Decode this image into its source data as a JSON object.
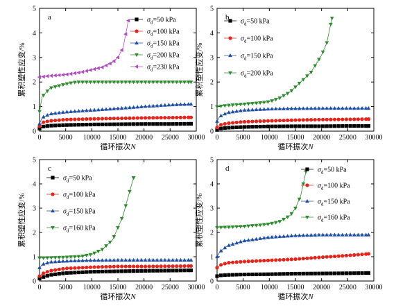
{
  "figure": {
    "x_axis_label": "循环振次",
    "x_axis_var": "N",
    "y_axis_label": "累积塑性应变/%"
  },
  "colors": {
    "black": "#000000",
    "red": "#e8231a",
    "blue": "#1f4ea6",
    "green": "#2e8b2e",
    "purple": "#b04cc0"
  },
  "chart_data": [
    {
      "type": "line",
      "panel": "a",
      "xlabel": "循环振次N",
      "ylabel": "累积塑性应变/%",
      "xlim": [
        0,
        30000
      ],
      "ylim": [
        0,
        5
      ],
      "xticks": [
        0,
        5000,
        10000,
        15000,
        20000,
        25000,
        30000
      ],
      "yticks": [
        0,
        1,
        2,
        3,
        4,
        5
      ],
      "legend_position": "top-right",
      "series": [
        {
          "name": "σd=50 kPa",
          "color": "black",
          "marker": "square",
          "x": [
            0,
            500,
            2000,
            5000,
            10000,
            15000,
            20000,
            25000,
            29000
          ],
          "y": [
            0.1,
            0.18,
            0.22,
            0.25,
            0.27,
            0.28,
            0.29,
            0.29,
            0.3
          ]
        },
        {
          "name": "σd=100 kPa",
          "color": "red",
          "marker": "circle",
          "x": [
            0,
            500,
            2000,
            5000,
            10000,
            15000,
            20000,
            25000,
            29000
          ],
          "y": [
            0.2,
            0.35,
            0.42,
            0.47,
            0.5,
            0.52,
            0.54,
            0.55,
            0.56
          ]
        },
        {
          "name": "σd=150 kPa",
          "color": "blue",
          "marker": "triangle-up",
          "x": [
            0,
            500,
            2000,
            5000,
            10000,
            15000,
            20000,
            25000,
            29000
          ],
          "y": [
            0.3,
            0.55,
            0.7,
            0.78,
            0.85,
            0.92,
            1.0,
            1.07,
            1.1
          ]
        },
        {
          "name": "σd=200 kPa",
          "color": "green",
          "marker": "triangle-down",
          "x": [
            0,
            500,
            2000,
            5000,
            7000,
            10000,
            15000,
            20000,
            25000,
            29000
          ],
          "y": [
            0.8,
            1.4,
            1.75,
            1.92,
            2.0,
            2.0,
            2.0,
            2.0,
            2.0,
            2.0
          ]
        },
        {
          "name": "σd=230 kPa",
          "color": "purple",
          "marker": "triangle-left",
          "x": [
            0,
            2000,
            5000,
            8000,
            10000,
            12000,
            14000,
            15000,
            16000,
            17000
          ],
          "y": [
            2.2,
            2.25,
            2.3,
            2.4,
            2.5,
            2.6,
            2.8,
            3.0,
            3.4,
            4.5
          ]
        }
      ]
    },
    {
      "type": "line",
      "panel": "b",
      "xlabel": "循环振次N",
      "ylabel": "累积塑性应变/%",
      "xlim": [
        0,
        30000
      ],
      "ylim": [
        0,
        5
      ],
      "xticks": [
        0,
        5000,
        10000,
        15000,
        20000,
        25000,
        30000
      ],
      "yticks": [
        0,
        1,
        2,
        3,
        4,
        5
      ],
      "legend_position": "top-left",
      "series": [
        {
          "name": "σd=50 kPa",
          "color": "black",
          "marker": "square",
          "x": [
            0,
            500,
            2000,
            5000,
            10000,
            15000,
            20000,
            25000,
            29000
          ],
          "y": [
            0.05,
            0.1,
            0.14,
            0.17,
            0.19,
            0.2,
            0.2,
            0.21,
            0.21
          ]
        },
        {
          "name": "σd=100 kPa",
          "color": "red",
          "marker": "circle",
          "x": [
            0,
            500,
            2000,
            5000,
            10000,
            15000,
            20000,
            25000,
            29000
          ],
          "y": [
            0.15,
            0.25,
            0.32,
            0.38,
            0.42,
            0.45,
            0.47,
            0.48,
            0.49
          ]
        },
        {
          "name": "σd=150 kPa",
          "color": "blue",
          "marker": "triangle-up",
          "x": [
            0,
            500,
            2000,
            5000,
            10000,
            15000,
            20000,
            25000,
            29000
          ],
          "y": [
            0.4,
            0.6,
            0.75,
            0.85,
            0.9,
            0.92,
            0.93,
            0.93,
            0.93
          ]
        },
        {
          "name": "σd=200 kPa",
          "color": "green",
          "marker": "triangle-down",
          "x": [
            0,
            2000,
            5000,
            8000,
            10000,
            12000,
            14000,
            16000,
            18000,
            20000,
            21000,
            22000
          ],
          "y": [
            1.0,
            1.05,
            1.1,
            1.15,
            1.2,
            1.35,
            1.6,
            2.0,
            2.4,
            3.1,
            3.6,
            4.6
          ]
        }
      ]
    },
    {
      "type": "line",
      "panel": "c",
      "xlabel": "循环振次N",
      "ylabel": "累积塑性应变/%",
      "xlim": [
        0,
        30000
      ],
      "ylim": [
        0,
        5
      ],
      "xticks": [
        0,
        5000,
        10000,
        15000,
        20000,
        25000,
        30000
      ],
      "yticks": [
        0,
        1,
        2,
        3,
        4,
        5
      ],
      "legend_position": "top-left",
      "series": [
        {
          "name": "σd=50 kPa",
          "color": "black",
          "marker": "square",
          "x": [
            0,
            500,
            2000,
            5000,
            10000,
            15000,
            20000,
            25000,
            29000
          ],
          "y": [
            0.1,
            0.15,
            0.25,
            0.33,
            0.38,
            0.4,
            0.42,
            0.43,
            0.44
          ]
        },
        {
          "name": "σd=100 kPa",
          "color": "red",
          "marker": "circle",
          "x": [
            0,
            500,
            2000,
            5000,
            10000,
            15000,
            20000,
            25000,
            29000
          ],
          "y": [
            0.2,
            0.3,
            0.42,
            0.52,
            0.57,
            0.6,
            0.6,
            0.61,
            0.62
          ]
        },
        {
          "name": "σd=150 kPa",
          "color": "blue",
          "marker": "triangle-up",
          "x": [
            0,
            500,
            2000,
            5000,
            10000,
            15000,
            20000,
            25000,
            29000
          ],
          "y": [
            0.55,
            0.68,
            0.78,
            0.82,
            0.85,
            0.86,
            0.86,
            0.86,
            0.86
          ]
        },
        {
          "name": "σd=160 kPa",
          "color": "green",
          "marker": "triangle-down",
          "x": [
            0,
            2000,
            5000,
            8000,
            10000,
            12000,
            14000,
            15000,
            16000,
            17000,
            18000
          ],
          "y": [
            0.95,
            0.96,
            0.98,
            1.02,
            1.1,
            1.3,
            1.7,
            2.2,
            2.7,
            3.5,
            4.25
          ]
        }
      ]
    },
    {
      "type": "line",
      "panel": "d",
      "xlabel": "循环振次N",
      "ylabel": "累积塑性应变/%",
      "xlim": [
        0,
        30000
      ],
      "ylim": [
        0,
        5
      ],
      "xticks": [
        0,
        5000,
        10000,
        15000,
        20000,
        25000,
        30000
      ],
      "yticks": [
        0,
        1,
        2,
        3,
        4,
        5
      ],
      "legend_position": "top-right",
      "series": [
        {
          "name": "σd=50 kPa",
          "color": "black",
          "marker": "square",
          "x": [
            0,
            500,
            2000,
            5000,
            10000,
            15000,
            20000,
            25000,
            29000
          ],
          "y": [
            0.2,
            0.23,
            0.25,
            0.27,
            0.28,
            0.3,
            0.31,
            0.32,
            0.33
          ]
        },
        {
          "name": "σd=100 kPa",
          "color": "red",
          "marker": "circle",
          "x": [
            0,
            500,
            2000,
            5000,
            10000,
            15000,
            20000,
            25000,
            29000
          ],
          "y": [
            0.55,
            0.65,
            0.75,
            0.8,
            0.85,
            0.9,
            0.98,
            1.05,
            1.12
          ]
        },
        {
          "name": "σd=150 kPa",
          "color": "blue",
          "marker": "triangle-up",
          "x": [
            0,
            500,
            2000,
            5000,
            10000,
            15000,
            20000,
            25000,
            29000
          ],
          "y": [
            1.0,
            1.2,
            1.45,
            1.65,
            1.8,
            1.87,
            1.9,
            1.9,
            1.9
          ]
        },
        {
          "name": "σd=160 kPa",
          "color": "green",
          "marker": "triangle-down",
          "x": [
            0,
            2000,
            5000,
            8000,
            10000,
            12000,
            14000,
            15000,
            16000,
            17000
          ],
          "y": [
            2.2,
            2.22,
            2.25,
            2.3,
            2.35,
            2.45,
            2.7,
            3.0,
            3.5,
            4.5
          ]
        }
      ]
    }
  ]
}
